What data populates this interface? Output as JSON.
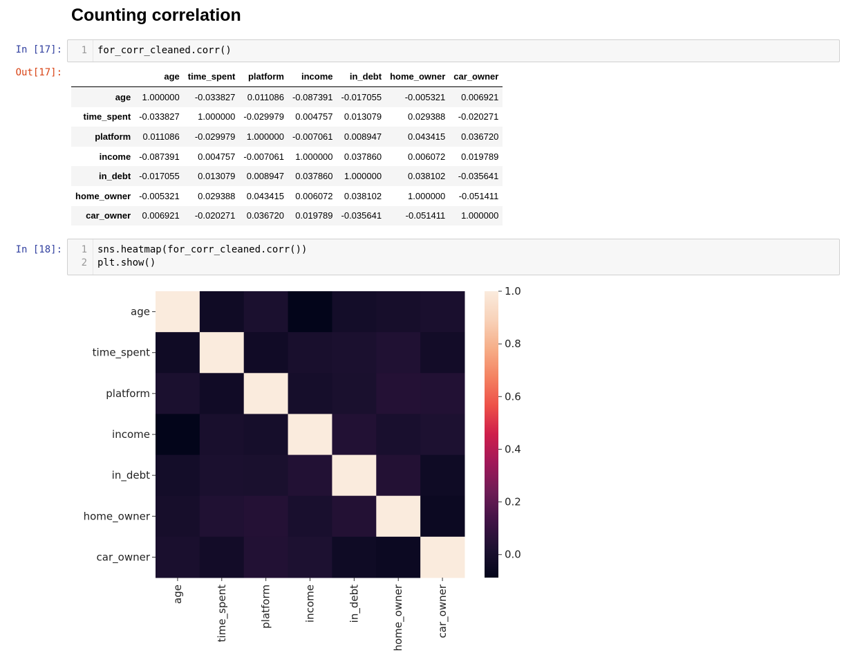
{
  "heading": "Counting correlation",
  "cell17": {
    "in_prompt": "In [17]:",
    "out_prompt": "Out[17]:",
    "lines": [
      {
        "num": "1",
        "code": "for_corr_cleaned.corr()"
      }
    ]
  },
  "dataframe": {
    "columns": [
      "age",
      "time_spent",
      "platform",
      "income",
      "in_debt",
      "home_owner",
      "car_owner"
    ],
    "rows": [
      {
        "label": "age",
        "values": [
          "1.000000",
          "-0.033827",
          "0.011086",
          "-0.087391",
          "-0.017055",
          "-0.005321",
          "0.006921"
        ]
      },
      {
        "label": "time_spent",
        "values": [
          "-0.033827",
          "1.000000",
          "-0.029979",
          "0.004757",
          "0.013079",
          "0.029388",
          "-0.020271"
        ]
      },
      {
        "label": "platform",
        "values": [
          "0.011086",
          "-0.029979",
          "1.000000",
          "-0.007061",
          "0.008947",
          "0.043415",
          "0.036720"
        ]
      },
      {
        "label": "income",
        "values": [
          "-0.087391",
          "0.004757",
          "-0.007061",
          "1.000000",
          "0.037860",
          "0.006072",
          "0.019789"
        ]
      },
      {
        "label": "in_debt",
        "values": [
          "-0.017055",
          "0.013079",
          "0.008947",
          "0.037860",
          "1.000000",
          "0.038102",
          "-0.035641"
        ]
      },
      {
        "label": "home_owner",
        "values": [
          "-0.005321",
          "0.029388",
          "0.043415",
          "0.006072",
          "0.038102",
          "1.000000",
          "-0.051411"
        ]
      },
      {
        "label": "car_owner",
        "values": [
          "0.006921",
          "-0.020271",
          "0.036720",
          "0.019789",
          "-0.035641",
          "-0.051411",
          "1.000000"
        ]
      }
    ]
  },
  "cell18": {
    "in_prompt": "In [18]:",
    "lines": [
      {
        "num": "1",
        "code": "sns.heatmap(for_corr_cleaned.corr())"
      },
      {
        "num": "2",
        "code": "plt.show()"
      }
    ]
  },
  "chart_data": {
    "type": "heatmap",
    "rows": [
      "age",
      "time_spent",
      "platform",
      "income",
      "in_debt",
      "home_owner",
      "car_owner"
    ],
    "cols": [
      "age",
      "time_spent",
      "platform",
      "income",
      "in_debt",
      "home_owner",
      "car_owner"
    ],
    "values": [
      [
        1.0,
        -0.033827,
        0.011086,
        -0.087391,
        -0.017055,
        -0.005321,
        0.006921
      ],
      [
        -0.033827,
        1.0,
        -0.029979,
        0.004757,
        0.013079,
        0.029388,
        -0.020271
      ],
      [
        0.011086,
        -0.029979,
        1.0,
        -0.007061,
        0.008947,
        0.043415,
        0.03672
      ],
      [
        -0.087391,
        0.004757,
        -0.007061,
        1.0,
        0.03786,
        0.006072,
        0.019789
      ],
      [
        -0.017055,
        0.013079,
        0.008947,
        0.03786,
        1.0,
        0.038102,
        -0.035641
      ],
      [
        -0.005321,
        0.029388,
        0.043415,
        0.006072,
        0.038102,
        1.0,
        -0.051411
      ],
      [
        0.006921,
        -0.020271,
        0.03672,
        0.019789,
        -0.035641,
        -0.051411,
        1.0
      ]
    ],
    "vmin": -0.087391,
    "vmax": 1.0,
    "colormap": "rocket",
    "colorbar_ticks": [
      0.0,
      0.2,
      0.4,
      0.6,
      0.8,
      1.0
    ],
    "colorbar_tick_labels": [
      "0.0",
      "0.2",
      "0.4",
      "0.6",
      "0.8",
      "1.0"
    ],
    "title": "",
    "xlabel": "",
    "ylabel": ""
  }
}
